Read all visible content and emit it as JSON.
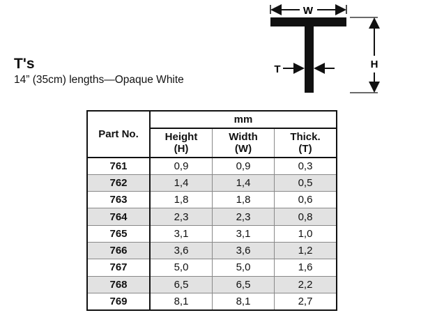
{
  "title": "T's",
  "subtitle": "14” (35cm) lengths—Opaque White",
  "diagram": {
    "w_label": "W",
    "h_label": "H",
    "t_label": "T"
  },
  "table": {
    "part_header": "Part No.",
    "unit_header": "mm",
    "columns": [
      {
        "name": "Height",
        "abbr": "(H)"
      },
      {
        "name": "Width",
        "abbr": "(W)"
      },
      {
        "name": "Thick.",
        "abbr": "(T)"
      }
    ],
    "rows": [
      [
        "761",
        "0,9",
        "0,9",
        "0,3"
      ],
      [
        "762",
        "1,4",
        "1,4",
        "0,5"
      ],
      [
        "763",
        "1,8",
        "1,8",
        "0,6"
      ],
      [
        "764",
        "2,3",
        "2,3",
        "0,8"
      ],
      [
        "765",
        "3,1",
        "3,1",
        "1,0"
      ],
      [
        "766",
        "3,6",
        "3,6",
        "1,2"
      ],
      [
        "767",
        "5,0",
        "5,0",
        "1,6"
      ],
      [
        "768",
        "6,5",
        "6,5",
        "2,2"
      ],
      [
        "769",
        "8,1",
        "8,1",
        "2,7"
      ]
    ]
  }
}
